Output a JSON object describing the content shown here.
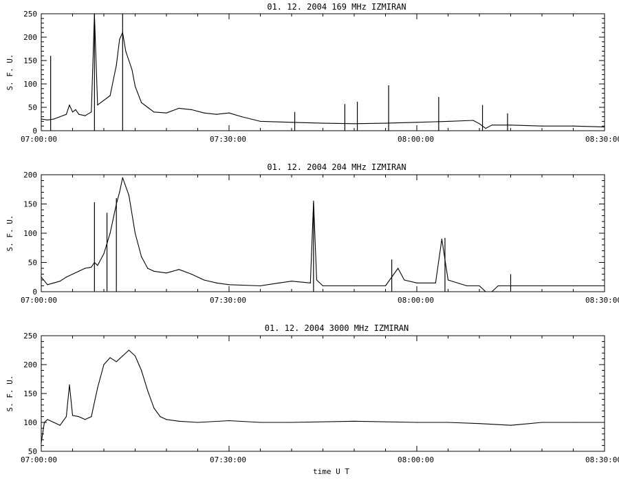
{
  "chart_data": [
    {
      "type": "line",
      "title": "01.  12.  2004    169  MHz    IZMIRAN",
      "ylabel": "S.  F.  U.",
      "xlabel": "",
      "xlim": [
        "07:00:00",
        "08:30:00"
      ],
      "ylim": [
        0,
        250
      ],
      "xticks": [
        "07:00:00",
        "07:30:00",
        "08:00:00",
        "08:30:00"
      ],
      "yticks": [
        0,
        50,
        100,
        150,
        200,
        250
      ],
      "grid": false,
      "series": [
        {
          "x": [
            "07:00:00",
            "07:01:00",
            "07:02:00",
            "07:03:00",
            "07:04:00",
            "07:04:30",
            "07:05:00",
            "07:05:30",
            "07:06:00",
            "07:07:00",
            "07:08:00",
            "07:08:30",
            "07:09:00",
            "07:10:00",
            "07:11:00",
            "07:12:00",
            "07:12:30",
            "07:13:00",
            "07:13:30",
            "07:14:00",
            "07:14:30",
            "07:15:00",
            "07:16:00",
            "07:17:00",
            "07:18:00",
            "07:20:00",
            "07:22:00",
            "07:24:00",
            "07:26:00",
            "07:28:00",
            "07:30:00",
            "07:32:00",
            "07:35:00",
            "07:40:00",
            "07:45:00",
            "07:50:00",
            "07:55:00",
            "08:00:00",
            "08:05:00",
            "08:09:00",
            "08:10:00",
            "08:11:00",
            "08:12:00",
            "08:15:00",
            "08:20:00",
            "08:25:00",
            "08:30:00"
          ],
          "y": [
            25,
            23,
            25,
            30,
            35,
            55,
            40,
            45,
            35,
            32,
            40,
            250,
            55,
            65,
            75,
            140,
            195,
            210,
            170,
            150,
            130,
            95,
            60,
            50,
            40,
            38,
            48,
            45,
            38,
            35,
            38,
            30,
            20,
            18,
            16,
            15,
            16,
            18,
            20,
            22,
            15,
            5,
            12,
            12,
            10,
            10,
            8
          ]
        }
      ],
      "spikes": [
        {
          "x": "07:01:30",
          "y": 160
        },
        {
          "x": "07:08:30",
          "y": 250
        },
        {
          "x": "07:13:00",
          "y": 250
        },
        {
          "x": "07:40:30",
          "y": 40
        },
        {
          "x": "07:48:30",
          "y": 57
        },
        {
          "x": "07:50:30",
          "y": 62
        },
        {
          "x": "07:55:30",
          "y": 97
        },
        {
          "x": "08:03:30",
          "y": 72
        },
        {
          "x": "08:10:30",
          "y": 55
        },
        {
          "x": "08:14:30",
          "y": 37
        }
      ]
    },
    {
      "type": "line",
      "title": "01.  12.  2004    204  MHz    IZMIRAN",
      "ylabel": "S.  F.  U.",
      "xlabel": "",
      "xlim": [
        "07:00:00",
        "08:30:00"
      ],
      "ylim": [
        0,
        200
      ],
      "xticks": [
        "07:00:00",
        "07:30:00",
        "08:00:00",
        "08:30:00"
      ],
      "yticks": [
        0,
        50,
        100,
        150,
        200
      ],
      "grid": false,
      "series": [
        {
          "x": [
            "07:00:00",
            "07:01:00",
            "07:02:00",
            "07:03:00",
            "07:04:00",
            "07:05:00",
            "07:06:00",
            "07:07:00",
            "07:08:00",
            "07:08:30",
            "07:09:00",
            "07:10:00",
            "07:11:00",
            "07:12:00",
            "07:12:30",
            "07:13:00",
            "07:13:30",
            "07:14:00",
            "07:15:00",
            "07:16:00",
            "07:17:00",
            "07:18:00",
            "07:20:00",
            "07:22:00",
            "07:24:00",
            "07:26:00",
            "07:28:00",
            "07:30:00",
            "07:35:00",
            "07:38:00",
            "07:40:00",
            "07:43:00",
            "07:43:30",
            "07:44:00",
            "07:45:00",
            "07:50:00",
            "07:55:00",
            "07:57:00",
            "07:58:00",
            "08:00:00",
            "08:03:00",
            "08:04:00",
            "08:05:00",
            "08:08:00",
            "08:10:00",
            "08:11:00",
            "08:12:00",
            "08:13:00",
            "08:15:00",
            "08:20:00",
            "08:25:00",
            "08:30:00"
          ],
          "y": [
            25,
            12,
            15,
            18,
            25,
            30,
            35,
            40,
            42,
            50,
            45,
            65,
            100,
            150,
            170,
            195,
            180,
            165,
            100,
            60,
            40,
            35,
            32,
            38,
            30,
            20,
            15,
            12,
            10,
            15,
            18,
            15,
            155,
            20,
            10,
            10,
            10,
            40,
            20,
            15,
            15,
            90,
            20,
            10,
            10,
            0,
            0,
            10,
            10,
            10,
            10,
            10
          ]
        }
      ],
      "spikes": [
        {
          "x": "07:08:30",
          "y": 153
        },
        {
          "x": "07:10:30",
          "y": 135
        },
        {
          "x": "07:12:00",
          "y": 160
        },
        {
          "x": "07:43:30",
          "y": 152
        },
        {
          "x": "07:56:00",
          "y": 55
        },
        {
          "x": "08:04:30",
          "y": 92
        },
        {
          "x": "08:15:00",
          "y": 30
        }
      ]
    },
    {
      "type": "line",
      "title": "01.  12.  2004    3000  MHz    IZMIRAN",
      "ylabel": "S.  F.  U.",
      "xlabel": "time   U T",
      "xlim": [
        "07:00:00",
        "08:30:00"
      ],
      "ylim": [
        50,
        250
      ],
      "xticks": [
        "07:00:00",
        "07:30:00",
        "08:00:00",
        "08:30:00"
      ],
      "yticks": [
        50,
        100,
        150,
        200,
        250
      ],
      "grid": false,
      "series": [
        {
          "x": [
            "07:00:00",
            "07:00:30",
            "07:01:00",
            "07:02:00",
            "07:03:00",
            "07:04:00",
            "07:04:30",
            "07:05:00",
            "07:06:00",
            "07:07:00",
            "07:08:00",
            "07:09:00",
            "07:10:00",
            "07:11:00",
            "07:12:00",
            "07:13:00",
            "07:14:00",
            "07:15:00",
            "07:16:00",
            "07:17:00",
            "07:18:00",
            "07:19:00",
            "07:20:00",
            "07:22:00",
            "07:25:00",
            "07:30:00",
            "07:35:00",
            "07:40:00",
            "07:50:00",
            "08:00:00",
            "08:05:00",
            "08:10:00",
            "08:15:00",
            "08:20:00",
            "08:25:00",
            "08:30:00"
          ],
          "y": [
            65,
            100,
            105,
            100,
            95,
            110,
            165,
            112,
            110,
            105,
            110,
            160,
            200,
            212,
            205,
            215,
            225,
            215,
            190,
            155,
            125,
            110,
            105,
            102,
            100,
            103,
            100,
            100,
            102,
            100,
            100,
            98,
            95,
            100,
            100,
            100
          ]
        }
      ],
      "spikes": []
    }
  ]
}
